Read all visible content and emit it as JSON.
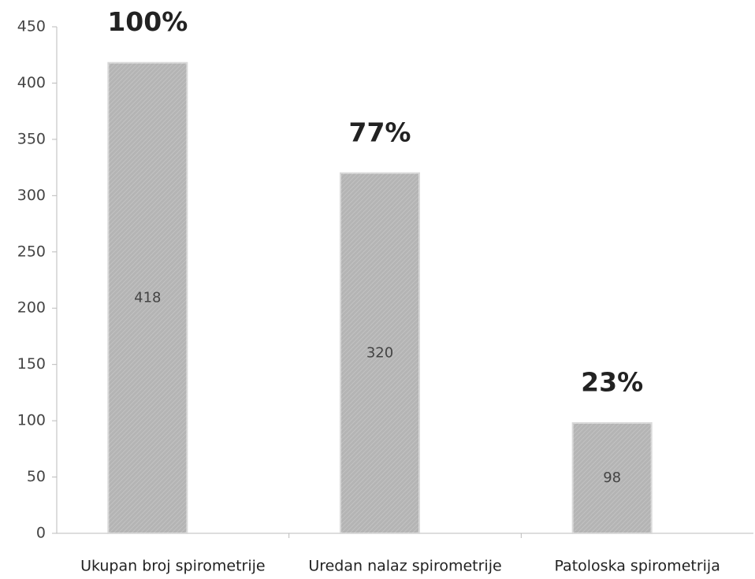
{
  "chart_data": {
    "type": "bar",
    "categories": [
      "Ukupan broj spirometrije",
      "Uredan nalaz spirometrije",
      "Patoloska spirometrija"
    ],
    "values": [
      418,
      320,
      98
    ],
    "annotations": [
      "100%",
      "77%",
      "23%"
    ],
    "color": "#b4b4b4",
    "ylim": [
      0,
      450
    ],
    "yticks": [
      0,
      50,
      100,
      150,
      200,
      250,
      300,
      350,
      400,
      450
    ],
    "grid": false
  }
}
